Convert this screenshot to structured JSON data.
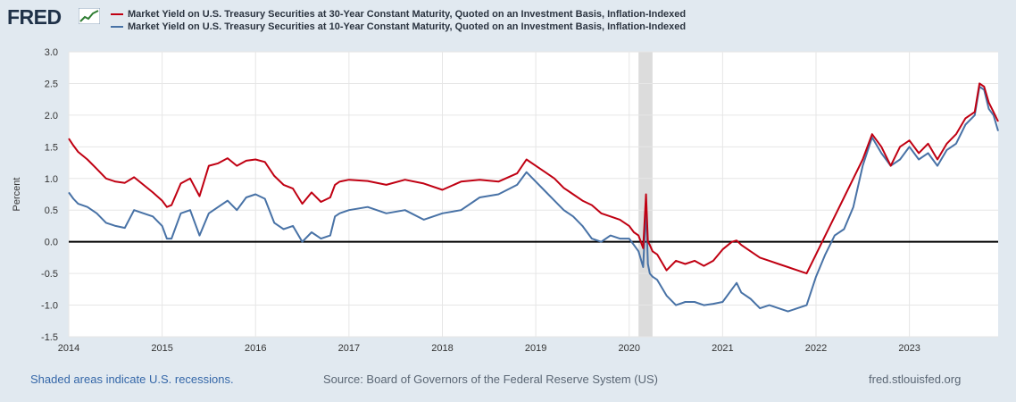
{
  "header": {
    "logo_text": "FRED",
    "logo_icon": "chart-line-icon"
  },
  "footer": {
    "recession_note": "Shaded areas indicate U.S. recessions.",
    "source": "Source: Board of Governors of the Federal Reserve System (US)",
    "site": "fred.stlouisfed.org"
  },
  "colors": {
    "series_30y": "#c00012",
    "series_10y": "#4872a6",
    "zero_line": "#000000",
    "recession": "#dcdcdc"
  },
  "chart_data": {
    "type": "line",
    "ylabel": "Percent",
    "xlabel": "",
    "ylim": [
      -1.5,
      3.0
    ],
    "xlim": [
      2014.0,
      2023.95
    ],
    "y_ticks": [
      "3.0",
      "2.5",
      "2.0",
      "1.5",
      "1.0",
      "0.5",
      "0.0",
      "-0.5",
      "-1.0",
      "-1.5"
    ],
    "x_ticks": [
      "2014",
      "2015",
      "2016",
      "2017",
      "2018",
      "2019",
      "2020",
      "2021",
      "2022",
      "2023"
    ],
    "grid": true,
    "legend_position": "top-left",
    "recessions": [
      [
        2020.1,
        2020.25
      ]
    ],
    "series": [
      {
        "name": "Market Yield on U.S. Treasury Securities at 30-Year Constant Maturity, Quoted on an Investment Basis, Inflation-Indexed",
        "x": [
          2014.0,
          2014.05,
          2014.1,
          2014.2,
          2014.3,
          2014.4,
          2014.5,
          2014.6,
          2014.7,
          2014.8,
          2014.9,
          2015.0,
          2015.05,
          2015.1,
          2015.2,
          2015.3,
          2015.4,
          2015.5,
          2015.6,
          2015.7,
          2015.8,
          2015.9,
          2016.0,
          2016.1,
          2016.2,
          2016.3,
          2016.4,
          2016.5,
          2016.6,
          2016.7,
          2016.8,
          2016.85,
          2016.9,
          2017.0,
          2017.2,
          2017.4,
          2017.6,
          2017.8,
          2018.0,
          2018.2,
          2018.4,
          2018.6,
          2018.8,
          2018.9,
          2019.0,
          2019.1,
          2019.2,
          2019.3,
          2019.4,
          2019.5,
          2019.6,
          2019.7,
          2019.8,
          2019.9,
          2020.0,
          2020.05,
          2020.1,
          2020.15,
          2020.18,
          2020.2,
          2020.22,
          2020.25,
          2020.3,
          2020.4,
          2020.5,
          2020.6,
          2020.7,
          2020.8,
          2020.9,
          2021.0,
          2021.1,
          2021.15,
          2021.2,
          2021.3,
          2021.4,
          2021.5,
          2021.6,
          2021.7,
          2021.8,
          2021.9,
          2022.0,
          2022.1,
          2022.2,
          2022.3,
          2022.4,
          2022.5,
          2022.6,
          2022.7,
          2022.8,
          2022.9,
          2023.0,
          2023.1,
          2023.2,
          2023.3,
          2023.4,
          2023.5,
          2023.6,
          2023.7,
          2023.75,
          2023.8,
          2023.85,
          2023.9,
          2023.95
        ],
        "values": [
          1.63,
          1.52,
          1.42,
          1.3,
          1.15,
          1.0,
          0.95,
          0.93,
          1.02,
          0.9,
          0.78,
          0.65,
          0.55,
          0.58,
          0.92,
          1.0,
          0.72,
          1.2,
          1.24,
          1.32,
          1.2,
          1.28,
          1.3,
          1.26,
          1.04,
          0.9,
          0.84,
          0.6,
          0.78,
          0.63,
          0.7,
          0.9,
          0.95,
          0.98,
          0.96,
          0.9,
          0.98,
          0.92,
          0.82,
          0.95,
          0.98,
          0.95,
          1.08,
          1.3,
          1.2,
          1.1,
          1.0,
          0.85,
          0.75,
          0.65,
          0.58,
          0.45,
          0.4,
          0.35,
          0.25,
          0.15,
          0.1,
          -0.1,
          0.75,
          0.0,
          -0.05,
          -0.15,
          -0.2,
          -0.45,
          -0.3,
          -0.35,
          -0.3,
          -0.38,
          -0.3,
          -0.12,
          0.0,
          0.02,
          -0.05,
          -0.15,
          -0.25,
          -0.3,
          -0.35,
          -0.4,
          -0.45,
          -0.5,
          -0.2,
          0.1,
          0.4,
          0.7,
          1.0,
          1.3,
          1.7,
          1.5,
          1.2,
          1.5,
          1.6,
          1.4,
          1.55,
          1.3,
          1.55,
          1.7,
          1.95,
          2.05,
          2.5,
          2.45,
          2.2,
          2.05,
          1.9
        ]
      },
      {
        "name": "Market Yield on U.S. Treasury Securities at 10-Year Constant Maturity, Quoted on an Investment Basis, Inflation-Indexed",
        "x": [
          2014.0,
          2014.05,
          2014.1,
          2014.2,
          2014.3,
          2014.4,
          2014.5,
          2014.6,
          2014.7,
          2014.8,
          2014.9,
          2015.0,
          2015.05,
          2015.1,
          2015.2,
          2015.3,
          2015.4,
          2015.5,
          2015.6,
          2015.7,
          2015.8,
          2015.9,
          2016.0,
          2016.1,
          2016.2,
          2016.3,
          2016.4,
          2016.5,
          2016.6,
          2016.7,
          2016.8,
          2016.85,
          2016.9,
          2017.0,
          2017.2,
          2017.4,
          2017.6,
          2017.8,
          2018.0,
          2018.2,
          2018.4,
          2018.6,
          2018.8,
          2018.9,
          2019.0,
          2019.1,
          2019.2,
          2019.3,
          2019.4,
          2019.5,
          2019.6,
          2019.7,
          2019.8,
          2019.9,
          2020.0,
          2020.05,
          2020.1,
          2020.15,
          2020.18,
          2020.2,
          2020.22,
          2020.25,
          2020.3,
          2020.4,
          2020.5,
          2020.6,
          2020.7,
          2020.8,
          2020.9,
          2021.0,
          2021.1,
          2021.15,
          2021.2,
          2021.3,
          2021.4,
          2021.5,
          2021.6,
          2021.7,
          2021.8,
          2021.9,
          2022.0,
          2022.1,
          2022.2,
          2022.3,
          2022.4,
          2022.5,
          2022.6,
          2022.7,
          2022.8,
          2022.9,
          2023.0,
          2023.1,
          2023.2,
          2023.3,
          2023.4,
          2023.5,
          2023.6,
          2023.7,
          2023.75,
          2023.8,
          2023.85,
          2023.9,
          2023.95
        ],
        "values": [
          0.78,
          0.68,
          0.6,
          0.55,
          0.45,
          0.3,
          0.25,
          0.22,
          0.5,
          0.45,
          0.4,
          0.25,
          0.05,
          0.05,
          0.45,
          0.5,
          0.1,
          0.45,
          0.55,
          0.65,
          0.5,
          0.7,
          0.75,
          0.68,
          0.3,
          0.2,
          0.25,
          0.0,
          0.15,
          0.05,
          0.1,
          0.4,
          0.45,
          0.5,
          0.55,
          0.45,
          0.5,
          0.35,
          0.45,
          0.5,
          0.7,
          0.75,
          0.9,
          1.1,
          0.95,
          0.8,
          0.65,
          0.5,
          0.4,
          0.25,
          0.05,
          0.0,
          0.1,
          0.05,
          0.05,
          -0.05,
          -0.15,
          -0.4,
          0.55,
          -0.35,
          -0.5,
          -0.55,
          -0.6,
          -0.85,
          -1.0,
          -0.95,
          -0.95,
          -1.0,
          -0.98,
          -0.95,
          -0.75,
          -0.65,
          -0.8,
          -0.9,
          -1.05,
          -1.0,
          -1.05,
          -1.1,
          -1.05,
          -1.0,
          -0.55,
          -0.2,
          0.1,
          0.2,
          0.55,
          1.2,
          1.65,
          1.4,
          1.2,
          1.3,
          1.5,
          1.3,
          1.4,
          1.2,
          1.45,
          1.55,
          1.85,
          2.0,
          2.45,
          2.4,
          2.1,
          2.0,
          1.75
        ]
      }
    ]
  }
}
